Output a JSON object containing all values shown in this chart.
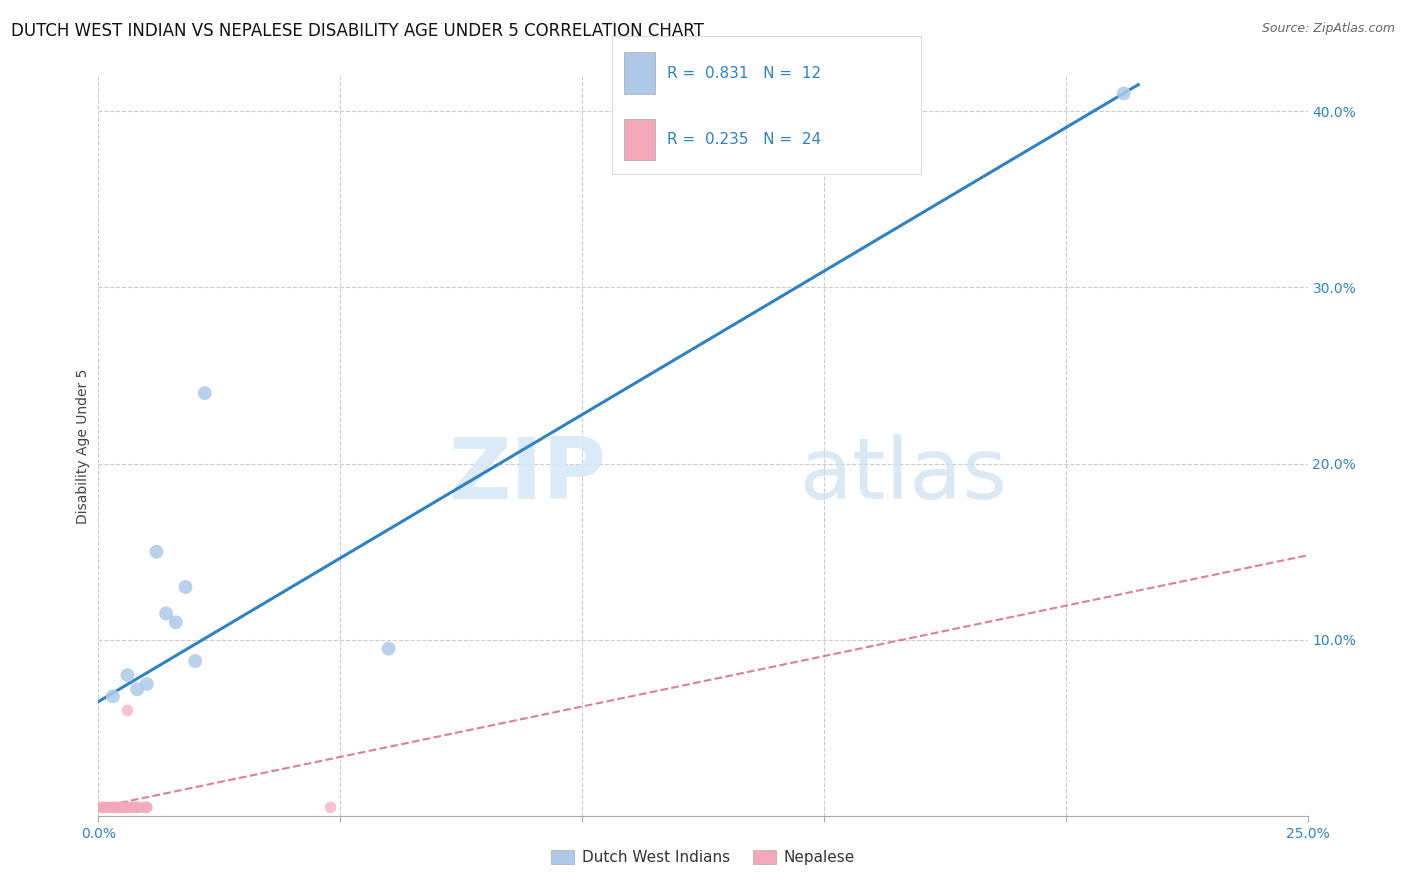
{
  "title": "DUTCH WEST INDIAN VS NEPALESE DISABILITY AGE UNDER 5 CORRELATION CHART",
  "source": "Source: ZipAtlas.com",
  "ylabel": "Disability Age Under 5",
  "xlim": [
    0,
    0.25
  ],
  "ylim": [
    0,
    0.42
  ],
  "xticks": [
    0.0,
    0.05,
    0.1,
    0.15,
    0.2,
    0.25
  ],
  "xtick_labels": [
    "0.0%",
    "",
    "",
    "",
    "",
    "25.0%"
  ],
  "yticks_right": [
    0.0,
    0.1,
    0.2,
    0.3,
    0.4
  ],
  "ytick_labels_right": [
    "",
    "10.0%",
    "20.0%",
    "30.0%",
    "40.0%"
  ],
  "blue_scatter_x": [
    0.003,
    0.006,
    0.008,
    0.01,
    0.012,
    0.014,
    0.016,
    0.018,
    0.02,
    0.022,
    0.06,
    0.212
  ],
  "blue_scatter_y": [
    0.068,
    0.08,
    0.072,
    0.075,
    0.15,
    0.115,
    0.11,
    0.13,
    0.088,
    0.24,
    0.095,
    0.41
  ],
  "pink_scatter_x": [
    0.0,
    0.001,
    0.001,
    0.002,
    0.002,
    0.003,
    0.003,
    0.003,
    0.004,
    0.004,
    0.005,
    0.005,
    0.005,
    0.006,
    0.006,
    0.006,
    0.007,
    0.007,
    0.008,
    0.008,
    0.009,
    0.01,
    0.01,
    0.048
  ],
  "pink_scatter_y": [
    0.005,
    0.005,
    0.005,
    0.005,
    0.005,
    0.005,
    0.005,
    0.005,
    0.005,
    0.005,
    0.005,
    0.005,
    0.005,
    0.005,
    0.005,
    0.06,
    0.005,
    0.005,
    0.005,
    0.005,
    0.005,
    0.005,
    0.005,
    0.005
  ],
  "blue_line_x": [
    0.0,
    0.215
  ],
  "blue_line_y": [
    0.065,
    0.415
  ],
  "pink_line_x": [
    0.0,
    0.25
  ],
  "pink_line_y": [
    0.005,
    0.148
  ],
  "blue_color": "#aec9e8",
  "blue_line_color": "#3182bd",
  "pink_color": "#f4a8bc",
  "pink_line_color": "#d4607a",
  "background_color": "#ffffff",
  "grid_color": "#cccccc",
  "legend_blue_r": "0.831",
  "legend_blue_n": "12",
  "legend_pink_r": "0.235",
  "legend_pink_n": "24",
  "watermark_zip": "ZIP",
  "watermark_atlas": "atlas",
  "title_fontsize": 12,
  "axis_label_fontsize": 10,
  "tick_fontsize": 10,
  "legend_label_blue": "Dutch West Indians",
  "legend_label_pink": "Nepalese"
}
